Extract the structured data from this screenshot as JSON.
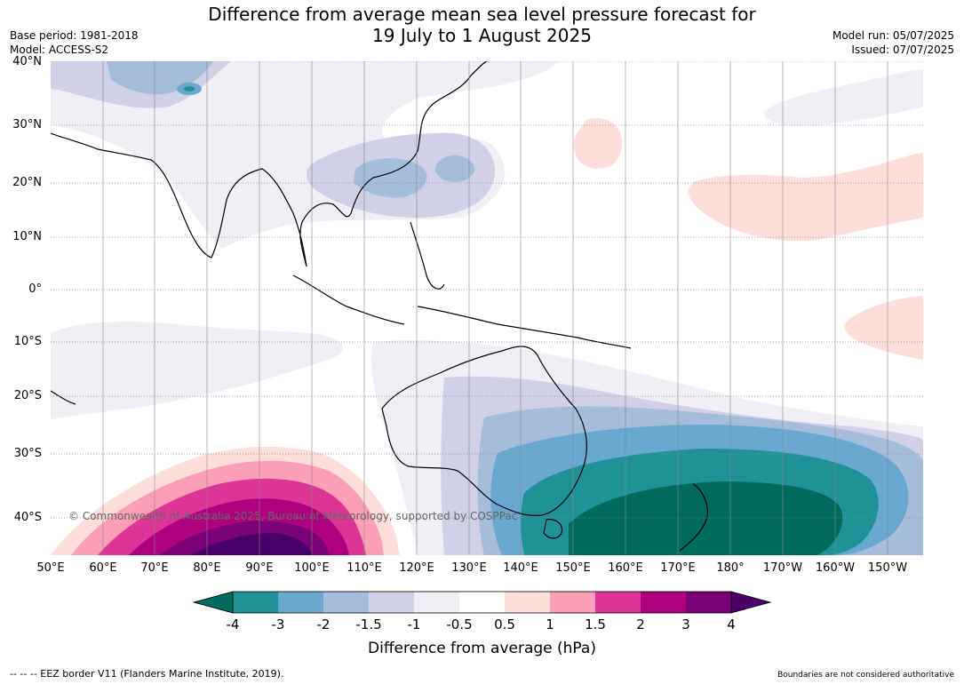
{
  "header": {
    "title_line1": "Difference from average mean sea level pressure forecast for",
    "title_line2": "19 July to 1 August 2025",
    "base_period": "Base period: 1981-2018",
    "model": "Model: ACCESS-S2",
    "model_run": "Model run: 05/07/2025",
    "issued": "Issued: 07/07/2025"
  },
  "map": {
    "latitude_labels": [
      "40°N",
      "30°N",
      "20°N",
      "10°N",
      "0°",
      "10°S",
      "20°S",
      "30°S",
      "40°S"
    ],
    "longitude_labels": [
      "50°E",
      "60°E",
      "70°E",
      "80°E",
      "90°E",
      "100°E",
      "110°E",
      "120°E",
      "130°E",
      "140°E",
      "150°E",
      "160°E",
      "170°E",
      "180°",
      "170°W",
      "160°W",
      "150°W"
    ],
    "copyright": "© Commonwealth of Australia 2025, Bureau of Meteorology, supported by COSPPac"
  },
  "colorbar": {
    "ticks": [
      "-4",
      "-3",
      "-2",
      "-1.5",
      "-1",
      "-0.5",
      "0.5",
      "1",
      "1.5",
      "2",
      "3",
      "4"
    ],
    "colors": [
      "#006a5c",
      "#1f9298",
      "#69a9cf",
      "#a5bddb",
      "#d0d1e6",
      "#f1eef6",
      "#ffffff",
      "#fdded9",
      "#fa9fb5",
      "#dd3497",
      "#ae017e",
      "#7a0177",
      "#49006a"
    ],
    "label": "Difference from average (hPa)"
  },
  "footer": {
    "eez_note": "--  --  -- EEZ border V11 (Flanders Marine Institute, 2019).",
    "boundaries_note": "Boundaries are not considered authoritative"
  }
}
